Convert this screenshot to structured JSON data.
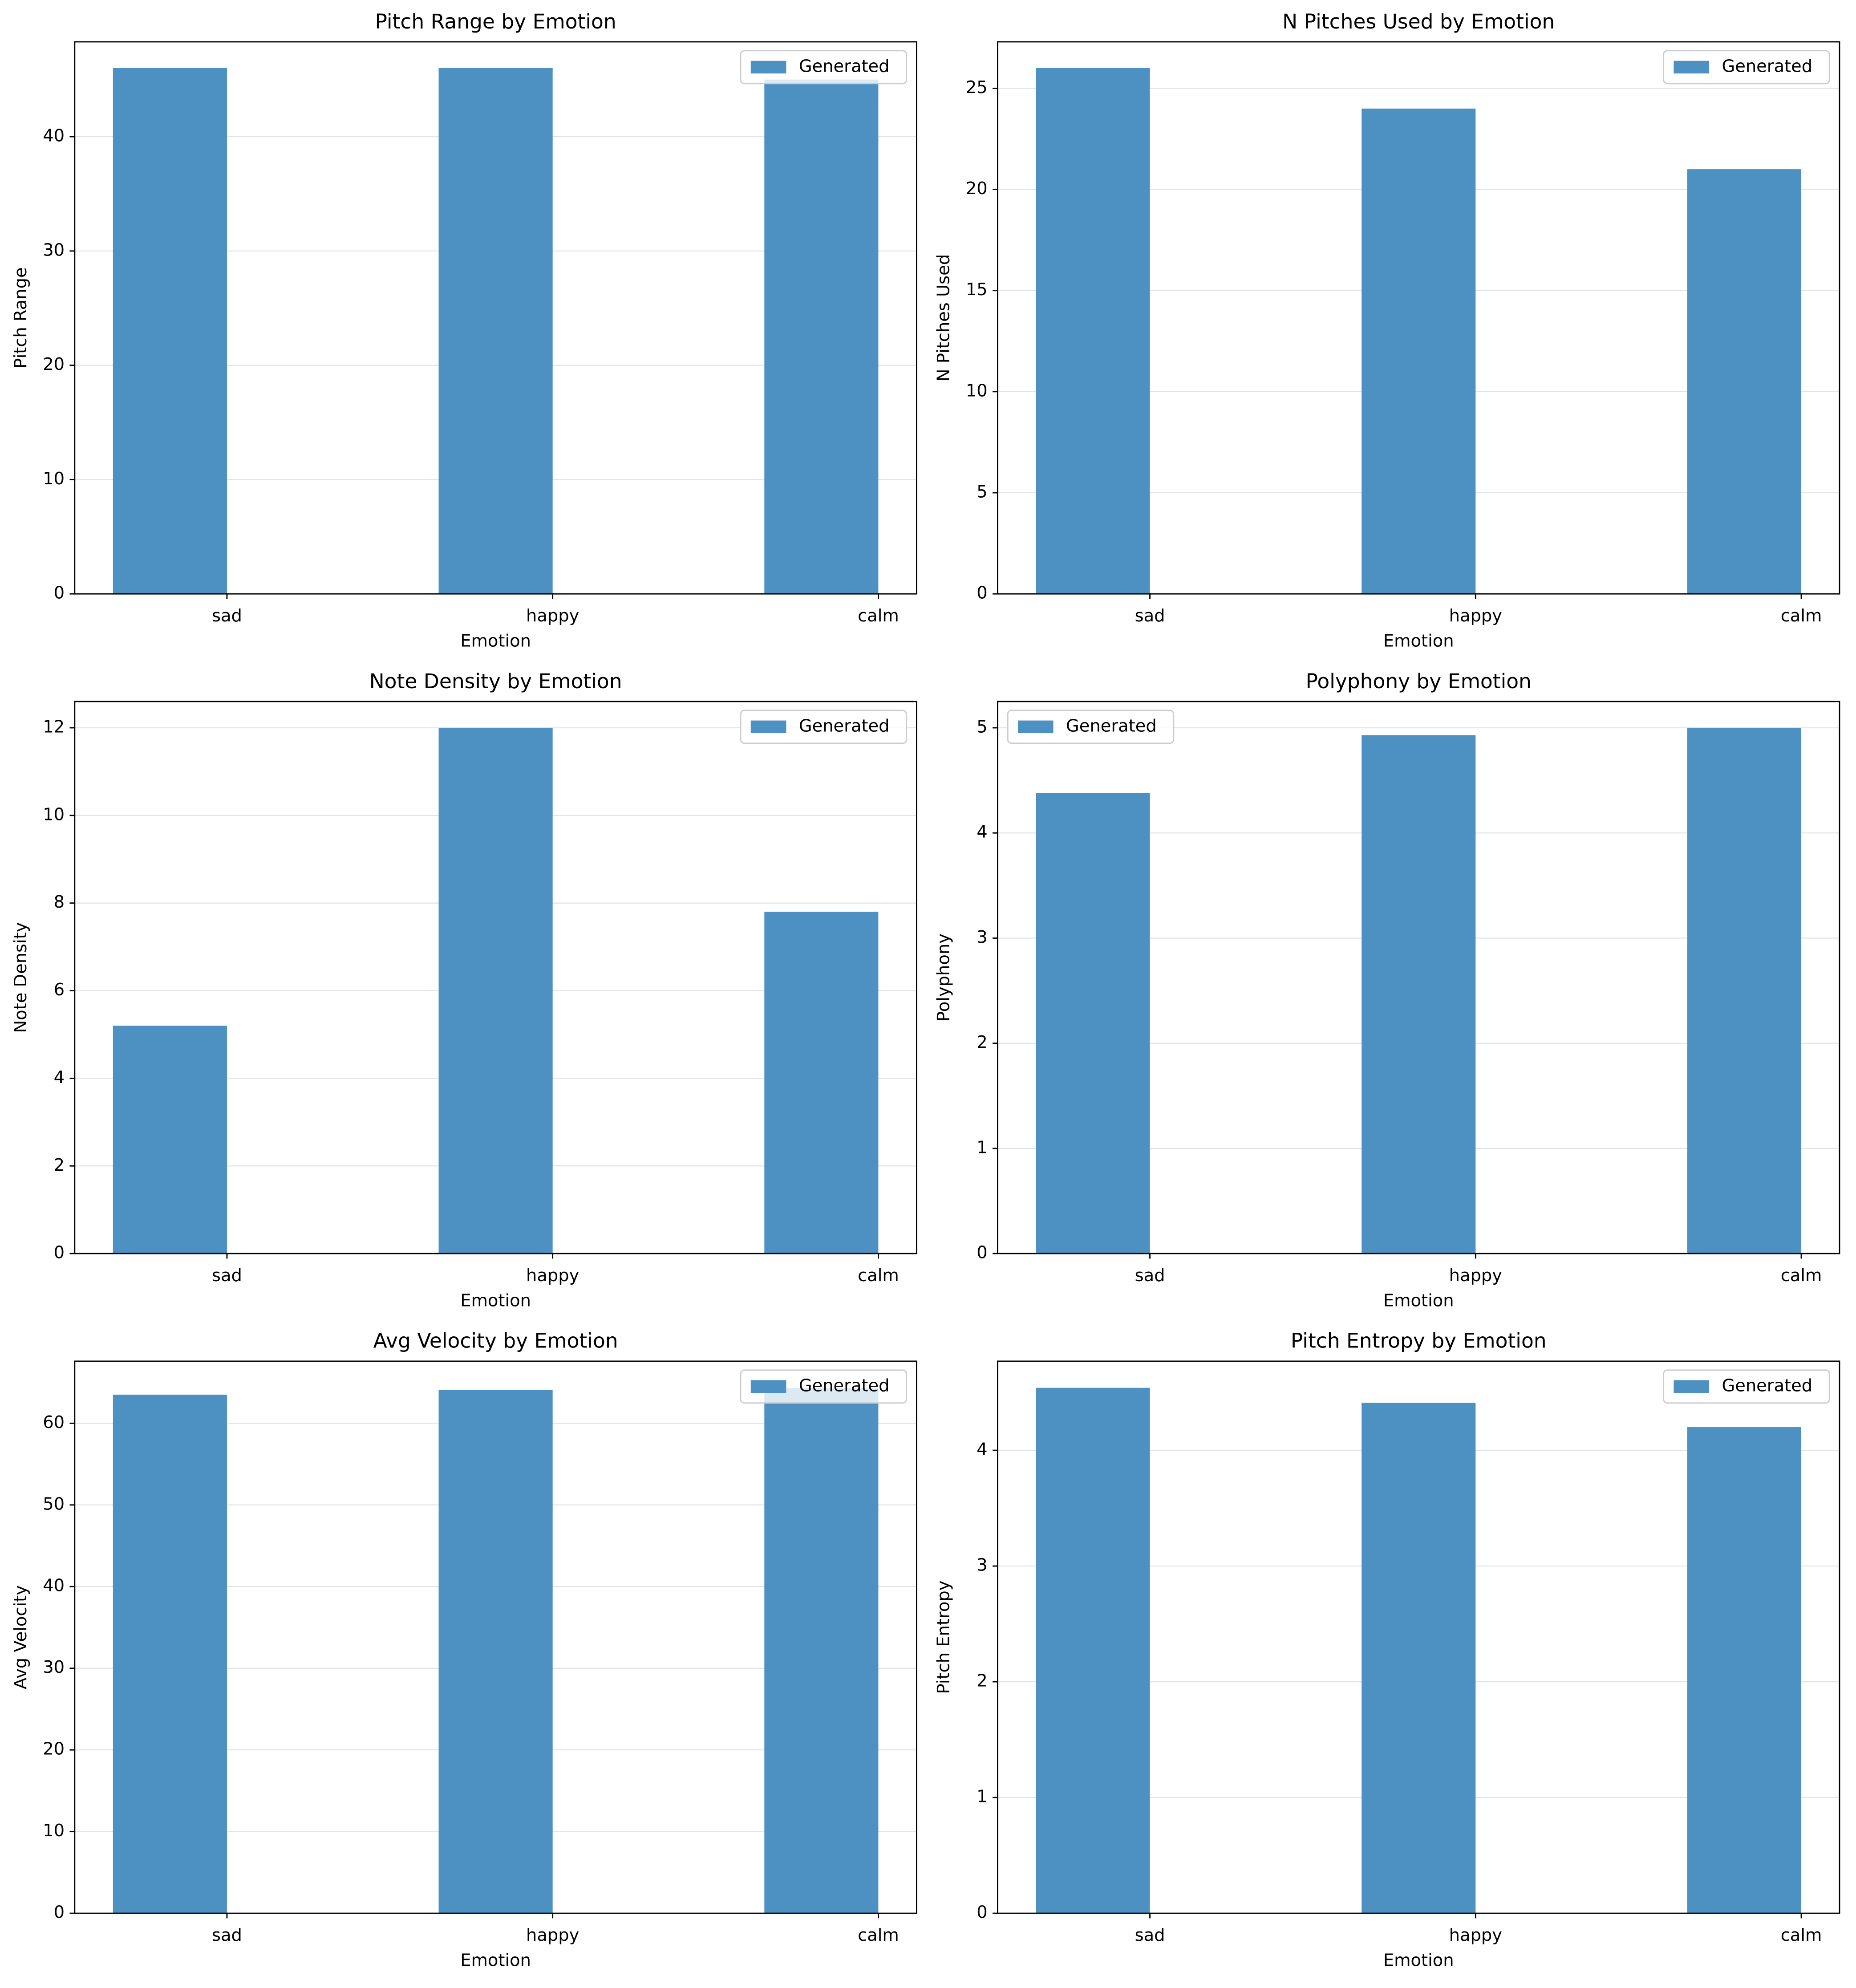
{
  "chart_data": [
    {
      "type": "bar",
      "title": "Pitch Range by Emotion",
      "x_label": "Emotion",
      "y_label": "Pitch Range",
      "categories": [
        "sad",
        "happy",
        "calm"
      ],
      "series": [
        {
          "name": "Generated",
          "color": "#4c91c2",
          "values": [
            46,
            46,
            45
          ]
        }
      ],
      "ylim": [
        0,
        48.3
      ],
      "yticks": [
        0,
        10,
        20,
        30,
        40
      ],
      "grid": true,
      "legend": "upper right"
    },
    {
      "type": "bar",
      "title": "N Pitches Used by Emotion",
      "x_label": "Emotion",
      "y_label": "N Pitches Used",
      "categories": [
        "sad",
        "happy",
        "calm"
      ],
      "series": [
        {
          "name": "Generated",
          "color": "#4c91c2",
          "values": [
            26,
            24,
            21
          ]
        }
      ],
      "ylim": [
        0,
        27.3
      ],
      "yticks": [
        0,
        5,
        10,
        15,
        20,
        25
      ],
      "grid": true,
      "legend": "upper right"
    },
    {
      "type": "bar",
      "title": "Note Density by Emotion",
      "x_label": "Emotion",
      "y_label": "Note Density",
      "categories": [
        "sad",
        "happy",
        "calm"
      ],
      "series": [
        {
          "name": "Generated",
          "color": "#4c91c2",
          "values": [
            5.2,
            12.0,
            7.8
          ]
        }
      ],
      "ylim": [
        0,
        12.6
      ],
      "yticks": [
        0,
        2,
        4,
        6,
        8,
        10,
        12
      ],
      "grid": true,
      "legend": "upper right"
    },
    {
      "type": "bar",
      "title": "Polyphony by Emotion",
      "x_label": "Emotion",
      "y_label": "Polyphony",
      "categories": [
        "sad",
        "happy",
        "calm"
      ],
      "series": [
        {
          "name": "Generated",
          "color": "#4c91c2",
          "values": [
            4.38,
            4.93,
            5.0
          ]
        }
      ],
      "ylim": [
        0,
        5.25
      ],
      "yticks": [
        0,
        1,
        2,
        3,
        4,
        5
      ],
      "grid": true,
      "legend": "upper left"
    },
    {
      "type": "bar",
      "title": "Avg Velocity by Emotion",
      "x_label": "Emotion",
      "y_label": "Avg Velocity",
      "categories": [
        "sad",
        "happy",
        "calm"
      ],
      "series": [
        {
          "name": "Generated",
          "color": "#4c91c2",
          "values": [
            63.5,
            64.1,
            64.3
          ]
        }
      ],
      "ylim": [
        0,
        67.6
      ],
      "yticks": [
        0,
        10,
        20,
        30,
        40,
        50,
        60
      ],
      "grid": true,
      "legend": "upper right"
    },
    {
      "type": "bar",
      "title": "Pitch Entropy by Emotion",
      "x_label": "Emotion",
      "y_label": "Pitch Entropy",
      "categories": [
        "sad",
        "happy",
        "calm"
      ],
      "series": [
        {
          "name": "Generated",
          "color": "#4c91c2",
          "values": [
            4.54,
            4.41,
            4.2
          ]
        }
      ],
      "ylim": [
        0,
        4.77
      ],
      "yticks": [
        0,
        1,
        2,
        3,
        4
      ],
      "grid": true,
      "legend": "upper right"
    }
  ]
}
